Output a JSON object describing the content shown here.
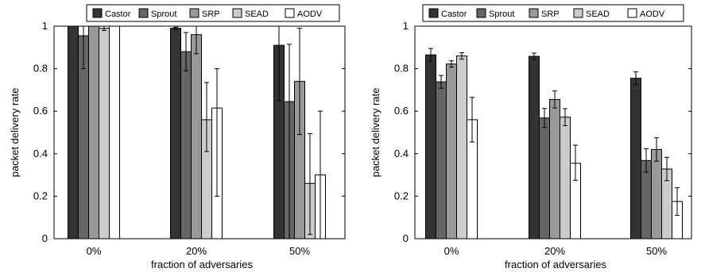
{
  "series_colors": {
    "Castor": "#333333",
    "Sprout": "#666666",
    "SRP": "#999999",
    "SEAD": "#cccccc",
    "AODV": "#ffffff"
  },
  "chart_data": [
    {
      "type": "bar",
      "categories": [
        "0%",
        "20%",
        "50%"
      ],
      "xlabel": "fraction of adversaries",
      "ylabel": "packet delivery rate",
      "ylim": [
        0,
        1
      ],
      "yticks": [
        0,
        0.2,
        0.4,
        0.6,
        0.8,
        1
      ],
      "ytick_labels": [
        "0",
        "0.2",
        "0.4",
        "0.6",
        "0.8",
        "1"
      ],
      "legend_position": "top",
      "series": [
        {
          "name": "Castor",
          "values": [
            1.0,
            0.99,
            0.91
          ],
          "err_low": [
            0.0,
            0.005,
            0.26
          ],
          "err_high": [
            0.0,
            0.005,
            0.09
          ]
        },
        {
          "name": "Sprout",
          "values": [
            0.955,
            0.88,
            0.645
          ],
          "err_low": [
            0.155,
            0.09,
            0.645
          ],
          "err_high": [
            0.045,
            0.09,
            0.27
          ]
        },
        {
          "name": "SRP",
          "values": [
            1.0,
            0.96,
            0.74
          ],
          "err_low": [
            0.0,
            0.09,
            0.25
          ],
          "err_high": [
            0.0,
            0.04,
            0.25
          ]
        },
        {
          "name": "SEAD",
          "values": [
            0.99,
            0.56,
            0.26
          ],
          "err_low": [
            0.01,
            0.15,
            0.24
          ],
          "err_high": [
            0.01,
            0.175,
            0.235
          ]
        },
        {
          "name": "AODV",
          "values": [
            1.0,
            0.615,
            0.3
          ],
          "err_low": [
            0.0,
            0.415,
            0.3
          ],
          "err_high": [
            0.0,
            0.185,
            0.3
          ]
        }
      ]
    },
    {
      "type": "bar",
      "categories": [
        "0%",
        "20%",
        "50%"
      ],
      "xlabel": "fraction of adversaries",
      "ylabel": "packet delivery rate",
      "ylim": [
        0,
        1
      ],
      "yticks": [
        0,
        0.2,
        0.4,
        0.6,
        0.8,
        1
      ],
      "ytick_labels": [
        "0",
        "0.2",
        "0.4",
        "0.6",
        "0.8",
        "1"
      ],
      "legend_position": "top",
      "series": [
        {
          "name": "Castor",
          "values": [
            0.865,
            0.858,
            0.755
          ],
          "err_low": [
            0.03,
            0.015,
            0.03
          ],
          "err_high": [
            0.03,
            0.015,
            0.03
          ]
        },
        {
          "name": "Sprout",
          "values": [
            0.738,
            0.568,
            0.368
          ],
          "err_low": [
            0.03,
            0.045,
            0.055
          ],
          "err_high": [
            0.03,
            0.045,
            0.055
          ]
        },
        {
          "name": "SRP",
          "values": [
            0.822,
            0.655,
            0.42
          ],
          "err_low": [
            0.015,
            0.04,
            0.055
          ],
          "err_high": [
            0.015,
            0.04,
            0.055
          ]
        },
        {
          "name": "SEAD",
          "values": [
            0.86,
            0.572,
            0.328
          ],
          "err_low": [
            0.015,
            0.04,
            0.055
          ],
          "err_high": [
            0.015,
            0.04,
            0.055
          ]
        },
        {
          "name": "AODV",
          "values": [
            0.56,
            0.355,
            0.175
          ],
          "err_low": [
            0.105,
            0.08,
            0.065
          ],
          "err_high": [
            0.105,
            0.085,
            0.065
          ]
        }
      ]
    }
  ]
}
